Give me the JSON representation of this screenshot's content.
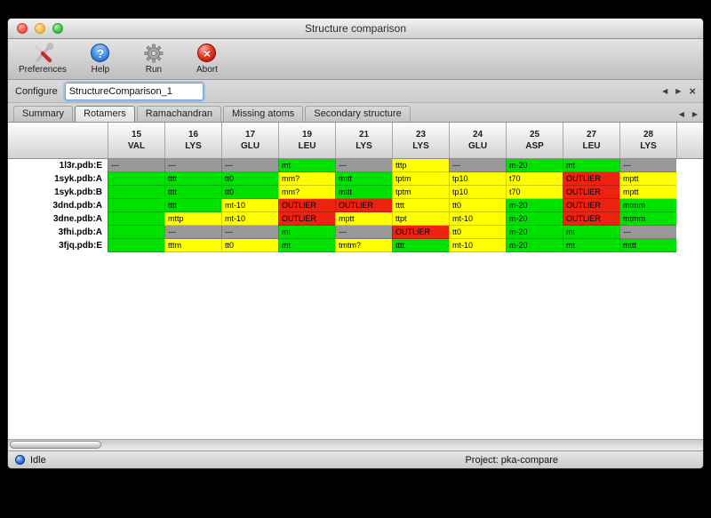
{
  "window": {
    "title": "Structure comparison"
  },
  "toolbar": {
    "items": [
      {
        "label": "Preferences",
        "icon": "tools-icon"
      },
      {
        "label": "Help",
        "icon": "help-icon"
      },
      {
        "label": "Run",
        "icon": "gear-icon"
      },
      {
        "label": "Abort",
        "icon": "abort-icon"
      }
    ]
  },
  "configure": {
    "label": "Configure",
    "value": "StructureComparison_1"
  },
  "tabs": [
    "Summary",
    "Rotamers",
    "Ramachandran",
    "Missing atoms",
    "Secondary structure"
  ],
  "active_tab": "Rotamers",
  "icons": {
    "back_arrow": "◀",
    "forward_arrow": "▶",
    "close_x": "×",
    "question_mark": "?",
    "abort_x": "×"
  },
  "colors": {
    "green": "#00e100",
    "yellow": "#ffff00",
    "red": "#ee2211",
    "gray": "#999999"
  },
  "table": {
    "columns": [
      {
        "num": "15",
        "res": "VAL"
      },
      {
        "num": "16",
        "res": "LYS"
      },
      {
        "num": "17",
        "res": "GLU"
      },
      {
        "num": "19",
        "res": "LEU"
      },
      {
        "num": "21",
        "res": "LYS"
      },
      {
        "num": "23",
        "res": "LYS"
      },
      {
        "num": "24",
        "res": "GLU"
      },
      {
        "num": "25",
        "res": "ASP"
      },
      {
        "num": "27",
        "res": "LEU"
      },
      {
        "num": "28",
        "res": "LYS"
      }
    ],
    "rows": [
      {
        "label": "1l3r.pdb:E",
        "cells": [
          {
            "text": "---",
            "color": "gray"
          },
          {
            "text": "---",
            "color": "gray"
          },
          {
            "text": "---",
            "color": "gray"
          },
          {
            "text": "mt",
            "color": "green"
          },
          {
            "text": "---",
            "color": "gray"
          },
          {
            "text": "tttp",
            "color": "yellow"
          },
          {
            "text": "---",
            "color": "gray"
          },
          {
            "text": "m-20",
            "color": "green"
          },
          {
            "text": "mt",
            "color": "green"
          },
          {
            "text": "---",
            "color": "gray"
          }
        ]
      },
      {
        "label": "1syk.pdb:A",
        "cells": [
          {
            "text": "",
            "color": "green"
          },
          {
            "text": "tttt",
            "color": "green"
          },
          {
            "text": "tt0",
            "color": "green"
          },
          {
            "text": "mm?",
            "color": "yellow"
          },
          {
            "text": "mttt",
            "color": "green"
          },
          {
            "text": "tptm",
            "color": "yellow"
          },
          {
            "text": "tp10",
            "color": "yellow"
          },
          {
            "text": "t70",
            "color": "yellow"
          },
          {
            "text": "OUTLIER",
            "color": "red"
          },
          {
            "text": "mptt",
            "color": "yellow"
          }
        ]
      },
      {
        "label": "1syk.pdb:B",
        "cells": [
          {
            "text": "",
            "color": "green"
          },
          {
            "text": "tttt",
            "color": "green"
          },
          {
            "text": "tt0",
            "color": "green"
          },
          {
            "text": "mm?",
            "color": "yellow"
          },
          {
            "text": "mttt",
            "color": "green"
          },
          {
            "text": "tptm",
            "color": "yellow"
          },
          {
            "text": "tp10",
            "color": "yellow"
          },
          {
            "text": "t70",
            "color": "yellow"
          },
          {
            "text": "OUTLIER",
            "color": "red"
          },
          {
            "text": "mptt",
            "color": "yellow"
          }
        ]
      },
      {
        "label": "3dnd.pdb:A",
        "cells": [
          {
            "text": "",
            "color": "green"
          },
          {
            "text": "tttt",
            "color": "green"
          },
          {
            "text": "mt-10",
            "color": "yellow"
          },
          {
            "text": "OUTLIER",
            "color": "red"
          },
          {
            "text": "OUTLIER",
            "color": "red"
          },
          {
            "text": "tttt",
            "color": "yellow"
          },
          {
            "text": "tt0",
            "color": "yellow"
          },
          {
            "text": "m-20",
            "color": "green"
          },
          {
            "text": "OUTLIER",
            "color": "red"
          },
          {
            "text": "mtmm",
            "color": "green"
          }
        ]
      },
      {
        "label": "3dne.pdb:A",
        "cells": [
          {
            "text": "",
            "color": "green"
          },
          {
            "text": "mttp",
            "color": "yellow"
          },
          {
            "text": "mt-10",
            "color": "yellow"
          },
          {
            "text": "OUTLIER",
            "color": "red"
          },
          {
            "text": "mptt",
            "color": "yellow"
          },
          {
            "text": "ttpt",
            "color": "yellow"
          },
          {
            "text": "mt-10",
            "color": "yellow"
          },
          {
            "text": "m-20",
            "color": "green"
          },
          {
            "text": "OUTLIER",
            "color": "red"
          },
          {
            "text": "mtmm",
            "color": "green"
          }
        ]
      },
      {
        "label": "3fhi.pdb:A",
        "cells": [
          {
            "text": "",
            "color": "green"
          },
          {
            "text": "---",
            "color": "gray"
          },
          {
            "text": "---",
            "color": "gray"
          },
          {
            "text": "mt",
            "color": "green"
          },
          {
            "text": "---",
            "color": "gray"
          },
          {
            "text": "OUTLIER",
            "color": "red"
          },
          {
            "text": "tt0",
            "color": "yellow"
          },
          {
            "text": "m-20",
            "color": "green"
          },
          {
            "text": "mt",
            "color": "green"
          },
          {
            "text": "---",
            "color": "gray"
          }
        ]
      },
      {
        "label": "3fjq.pdb:E",
        "cells": [
          {
            "text": "",
            "color": "green"
          },
          {
            "text": "tttm",
            "color": "yellow"
          },
          {
            "text": "tt0",
            "color": "yellow"
          },
          {
            "text": "mt",
            "color": "green"
          },
          {
            "text": "tmtm?",
            "color": "yellow"
          },
          {
            "text": "tttt",
            "color": "green"
          },
          {
            "text": "mt-10",
            "color": "yellow"
          },
          {
            "text": "m-20",
            "color": "green"
          },
          {
            "text": "mt",
            "color": "green"
          },
          {
            "text": "mttt",
            "color": "green"
          }
        ]
      }
    ]
  },
  "status": {
    "idle": "Idle",
    "project": "Project: pka-compare"
  }
}
